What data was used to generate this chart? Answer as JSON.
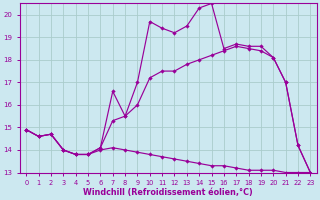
{
  "bg_color": "#cce8f0",
  "grid_color": "#aacccc",
  "line_color": "#990099",
  "xlabel": "Windchill (Refroidissement éolien,°C)",
  "xlim": [
    -0.5,
    23.5
  ],
  "ylim": [
    13,
    20.5
  ],
  "yticks": [
    13,
    14,
    15,
    16,
    17,
    18,
    19,
    20
  ],
  "xticks": [
    0,
    1,
    2,
    3,
    4,
    5,
    6,
    7,
    8,
    9,
    10,
    11,
    12,
    13,
    14,
    15,
    16,
    17,
    18,
    19,
    20,
    21,
    22,
    23
  ],
  "line1_x": [
    0,
    1,
    2,
    3,
    4,
    5,
    6,
    7,
    8,
    9,
    10,
    11,
    12,
    13,
    14,
    15,
    16,
    17,
    18,
    19,
    20,
    21,
    22,
    23
  ],
  "line1_y": [
    14.9,
    14.6,
    14.7,
    14.0,
    13.8,
    13.8,
    14.0,
    14.1,
    14.0,
    13.9,
    13.8,
    13.7,
    13.6,
    13.5,
    13.4,
    13.3,
    13.3,
    13.2,
    13.1,
    13.1,
    13.1,
    13.0,
    13.0,
    13.0
  ],
  "line2_x": [
    0,
    1,
    2,
    3,
    4,
    5,
    6,
    7,
    8,
    9,
    10,
    11,
    12,
    13,
    14,
    15,
    16,
    17,
    18,
    19,
    20,
    21,
    22,
    23
  ],
  "line2_y": [
    14.9,
    14.6,
    14.7,
    14.0,
    13.8,
    13.8,
    14.1,
    15.3,
    15.5,
    16.0,
    17.2,
    17.5,
    17.5,
    17.8,
    18.0,
    18.2,
    18.4,
    18.6,
    18.5,
    18.4,
    18.1,
    17.0,
    14.2,
    13.0
  ],
  "line3_x": [
    0,
    1,
    2,
    3,
    4,
    5,
    6,
    7,
    8,
    9,
    10,
    11,
    12,
    13,
    14,
    15,
    16,
    17,
    18,
    19,
    20,
    21,
    22,
    23
  ],
  "line3_y": [
    14.9,
    14.6,
    14.7,
    14.0,
    13.8,
    13.8,
    14.1,
    16.6,
    15.5,
    17.0,
    19.7,
    19.4,
    19.2,
    19.5,
    20.3,
    20.5,
    18.5,
    18.7,
    18.6,
    18.6,
    18.1,
    17.0,
    14.2,
    13.0
  ]
}
